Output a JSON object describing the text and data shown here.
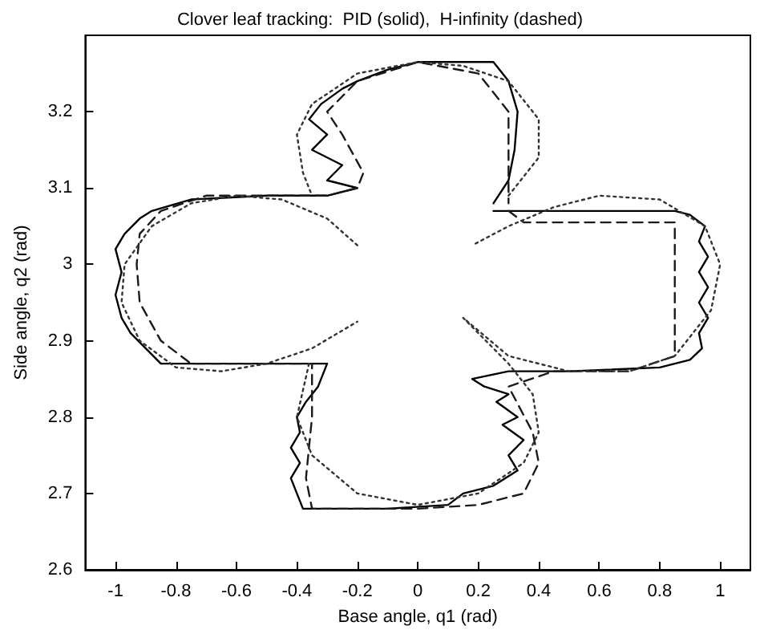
{
  "chart_data": {
    "type": "line",
    "title": "Clover leaf tracking:  PID (solid),  H-infinity (dashed)",
    "xlabel": "Base angle, q1 (rad)",
    "ylabel": "Side angle, q2 (rad)",
    "xlim": [
      -1.1,
      1.1
    ],
    "xticks": [
      -1,
      -0.8,
      -0.6,
      -0.4,
      -0.2,
      0,
      0.2,
      0.4,
      0.6,
      0.8,
      1
    ],
    "ylim": [
      2.6,
      3.3
    ],
    "yticks": [
      2.6,
      2.7,
      2.8,
      2.9,
      3,
      3.1,
      3.2
    ],
    "grid": false,
    "marker": "none",
    "series": [
      {
        "color": "#000000",
        "line_style": "solid",
        "x": [
          0.25,
          0.5,
          0.85,
          0.9,
          0.95,
          0.93,
          0.96,
          0.93,
          0.96,
          0.93,
          0.96,
          0.93,
          0.94,
          0.9,
          0.8,
          0.5,
          0.3,
          0.18,
          0.22,
          0.3,
          0.26,
          0.33,
          0.28,
          0.35,
          0.3,
          0.33,
          0.25,
          0.15,
          0.1,
          -0.1,
          -0.38,
          -0.4,
          -0.42,
          -0.39,
          -0.42,
          -0.39,
          -0.4,
          -0.37,
          -0.33,
          -0.3,
          -0.5,
          -0.85,
          -0.9,
          -0.95,
          -0.98,
          -1.0,
          -0.98,
          -1.0,
          -0.97,
          -0.92,
          -0.88,
          -0.75,
          -0.5,
          -0.3,
          -0.2,
          -0.3,
          -0.25,
          -0.35,
          -0.3,
          -0.36,
          -0.32,
          -0.25,
          -0.2,
          -0.1,
          0,
          0.25,
          0.3,
          0.33,
          0.32,
          0.3,
          0.25
        ],
        "values": [
          3.07,
          3.07,
          3.07,
          3.065,
          3.05,
          3.03,
          3.01,
          2.99,
          2.97,
          2.95,
          2.93,
          2.91,
          2.89,
          2.875,
          2.865,
          2.86,
          2.86,
          2.85,
          2.84,
          2.83,
          2.82,
          2.8,
          2.79,
          2.77,
          2.75,
          2.73,
          2.71,
          2.7,
          2.685,
          2.68,
          2.68,
          2.7,
          2.72,
          2.74,
          2.76,
          2.78,
          2.8,
          2.82,
          2.84,
          2.87,
          2.87,
          2.87,
          2.89,
          2.91,
          2.93,
          2.96,
          2.99,
          3.02,
          3.04,
          3.06,
          3.07,
          3.085,
          3.09,
          3.09,
          3.1,
          3.11,
          3.13,
          3.15,
          3.17,
          3.19,
          3.21,
          3.23,
          3.24,
          3.255,
          3.265,
          3.265,
          3.24,
          3.2,
          3.15,
          3.11,
          3.08
        ]
      },
      {
        "color": "#1a1a1a",
        "line_style": "dashed",
        "x": [
          0.3,
          0.35,
          0.85,
          0.85,
          0.7,
          0.45,
          0.3,
          0.38,
          0.4,
          0.35,
          0.2,
          0,
          -0.35,
          -0.37,
          -0.35,
          -0.35,
          -0.75,
          -0.85,
          -0.92,
          -0.93,
          -0.92,
          -0.85,
          -0.7,
          -0.3,
          -0.2,
          -0.18,
          -0.25,
          -0.3,
          -0.2,
          0,
          0.2,
          0.3,
          0.3
        ],
        "values": [
          3.07,
          3.055,
          3.055,
          2.88,
          2.86,
          2.86,
          2.84,
          2.78,
          2.74,
          2.7,
          2.685,
          2.68,
          2.68,
          2.72,
          2.8,
          2.87,
          2.87,
          2.9,
          2.95,
          3.0,
          3.04,
          3.07,
          3.09,
          3.09,
          3.1,
          3.12,
          3.17,
          3.2,
          3.24,
          3.265,
          3.25,
          3.2,
          3.08
        ]
      },
      {
        "color": "#333333",
        "line_style": "dotted",
        "x": [
          -0.2,
          -0.3,
          -0.45,
          -0.6,
          -0.75,
          -0.88,
          -0.97,
          -0.98,
          -0.92,
          -0.8,
          -0.65,
          -0.5,
          -0.35,
          -0.2,
          -0.28,
          -0.36,
          -0.4,
          -0.35,
          -0.2,
          0,
          0.2,
          0.35,
          0.4,
          0.38,
          0.3,
          0.15,
          0.3,
          0.5,
          0.7,
          0.85,
          0.97,
          1.0,
          0.95,
          0.8,
          0.6,
          0.45,
          0.3,
          0.18,
          0.24,
          0.3,
          0.4,
          0.4,
          0.3,
          0.15,
          0,
          -0.2,
          -0.35,
          -0.4,
          -0.38,
          -0.35
        ],
        "values": [
          3.025,
          3.06,
          3.085,
          3.09,
          3.08,
          3.05,
          3.0,
          2.95,
          2.9,
          2.865,
          2.86,
          2.87,
          2.89,
          2.925,
          null,
          2.87,
          2.8,
          2.75,
          2.7,
          2.685,
          2.7,
          2.74,
          2.78,
          2.83,
          2.87,
          2.93,
          2.88,
          2.86,
          2.86,
          2.88,
          2.94,
          3.0,
          3.05,
          3.085,
          3.09,
          3.075,
          3.05,
          3.025,
          null,
          3.09,
          3.14,
          3.19,
          3.24,
          3.26,
          3.265,
          3.25,
          3.21,
          3.17,
          3.12,
          3.09
        ]
      }
    ]
  }
}
